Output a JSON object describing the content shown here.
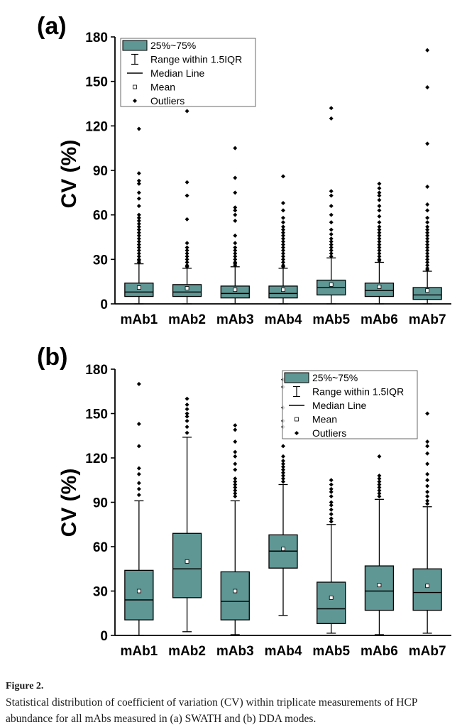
{
  "colors": {
    "box": "#5f9795",
    "stroke": "#000000",
    "axis": "#000000",
    "background": "#ffffff"
  },
  "legend_items": [
    "25%~75%",
    "Range within 1.5IQR",
    "Median Line",
    "Mean",
    "Outliers"
  ],
  "chart_data": [
    {
      "type": "box",
      "panel_label": "(a)",
      "ylabel": "CV (%)",
      "ylim": [
        0,
        180
      ],
      "yticks": [
        0,
        30,
        60,
        90,
        120,
        150,
        180
      ],
      "legend_position": "top-left",
      "categories": [
        "mAb1",
        "mAb2",
        "mAb3",
        "mAb4",
        "mAb5",
        "mAb6",
        "mAb7"
      ],
      "boxes": [
        {
          "name": "mAb1",
          "whisker_low": 0,
          "q1": 5,
          "median": 8,
          "q3": 14,
          "whisker_high": 27,
          "mean": 11,
          "outliers": [
            118,
            88,
            83,
            81,
            75,
            71,
            66,
            60,
            58,
            56,
            54,
            52,
            50,
            48,
            46,
            44,
            42,
            40,
            38,
            36,
            34,
            32,
            30,
            29,
            28
          ]
        },
        {
          "name": "mAb2",
          "whisker_low": 0,
          "q1": 5,
          "median": 8,
          "q3": 13,
          "whisker_high": 24,
          "mean": 10.5,
          "outliers": [
            130,
            82,
            73,
            57,
            41,
            38,
            36,
            34,
            32,
            30,
            28,
            26,
            25
          ]
        },
        {
          "name": "mAb3",
          "whisker_low": 0,
          "q1": 4,
          "median": 7,
          "q3": 12,
          "whisker_high": 25,
          "mean": 9.5,
          "outliers": [
            105,
            85,
            75,
            65,
            63,
            60,
            56,
            46,
            41,
            38,
            36,
            34,
            32,
            30,
            28,
            27,
            26
          ]
        },
        {
          "name": "mAb4",
          "whisker_low": 0,
          "q1": 4,
          "median": 7,
          "q3": 12,
          "whisker_high": 24,
          "mean": 9.5,
          "outliers": [
            86,
            68,
            63,
            58,
            55,
            52,
            50,
            48,
            46,
            44,
            42,
            40,
            38,
            36,
            34,
            32,
            30,
            28,
            26,
            25
          ]
        },
        {
          "name": "mAb5",
          "whisker_low": 0,
          "q1": 6,
          "median": 11,
          "q3": 16,
          "whisker_high": 31,
          "mean": 13,
          "outliers": [
            132,
            125,
            76,
            73,
            66,
            60,
            55,
            50,
            47,
            44,
            42,
            40,
            38,
            36,
            34,
            32
          ]
        },
        {
          "name": "mAb6",
          "whisker_low": 0,
          "q1": 5,
          "median": 9,
          "q3": 14,
          "whisker_high": 28,
          "mean": 11.5,
          "outliers": [
            81,
            78,
            75,
            73,
            70,
            66,
            63,
            59,
            55,
            52,
            50,
            48,
            46,
            44,
            42,
            40,
            38,
            36,
            34,
            32,
            30,
            29
          ]
        },
        {
          "name": "mAb7",
          "whisker_low": 0,
          "q1": 3,
          "median": 6,
          "q3": 11,
          "whisker_high": 22,
          "mean": 9,
          "outliers": [
            171,
            146,
            108,
            79,
            67,
            63,
            58,
            55,
            52,
            50,
            48,
            46,
            44,
            42,
            40,
            38,
            36,
            34,
            32,
            30,
            28,
            26,
            24,
            23
          ]
        }
      ]
    },
    {
      "type": "box",
      "panel_label": "(b)",
      "ylabel": "CV (%)",
      "ylim": [
        0,
        180
      ],
      "yticks": [
        0,
        30,
        60,
        90,
        120,
        150,
        180
      ],
      "legend_position": "top-right",
      "categories": [
        "mAb1",
        "mAb2",
        "mAb3",
        "mAb4",
        "mAb5",
        "mAb6",
        "mAb7"
      ],
      "boxes": [
        {
          "name": "mAb1",
          "whisker_low": 0,
          "q1": 10.5,
          "median": 24,
          "q3": 44,
          "whisker_high": 91,
          "mean": 30,
          "outliers": [
            170,
            143,
            128,
            113,
            109,
            103,
            99,
            95
          ]
        },
        {
          "name": "mAb2",
          "whisker_low": 2.5,
          "q1": 25.5,
          "median": 45,
          "q3": 69,
          "whisker_high": 134,
          "mean": 50,
          "outliers": [
            160,
            156,
            153,
            150,
            148,
            145,
            141,
            137
          ]
        },
        {
          "name": "mAb3",
          "whisker_low": 0.5,
          "q1": 10.5,
          "median": 23,
          "q3": 43,
          "whisker_high": 91,
          "mean": 30,
          "outliers": [
            142,
            139,
            131,
            124,
            121,
            116,
            112,
            106,
            104,
            102,
            100,
            98,
            96,
            94
          ]
        },
        {
          "name": "mAb4",
          "whisker_low": 13.5,
          "q1": 45.5,
          "median": 57,
          "q3": 68,
          "whisker_high": 102,
          "mean": 58.5,
          "outliers": [
            173,
            168,
            154,
            145,
            141,
            128,
            121,
            118,
            116,
            114,
            112,
            110,
            108,
            106,
            104
          ]
        },
        {
          "name": "mAb5",
          "whisker_low": 1.5,
          "q1": 8,
          "median": 18,
          "q3": 36,
          "whisker_high": 75,
          "mean": 25.5,
          "outliers": [
            105,
            102,
            99,
            97,
            94,
            90,
            88,
            85,
            82,
            79,
            77
          ]
        },
        {
          "name": "mAb6",
          "whisker_low": 0.5,
          "q1": 17,
          "median": 30,
          "q3": 47,
          "whisker_high": 92,
          "mean": 34,
          "outliers": [
            121,
            108,
            106,
            104,
            102,
            100,
            98,
            96,
            94
          ]
        },
        {
          "name": "mAb7",
          "whisker_low": 1.5,
          "q1": 17,
          "median": 29,
          "q3": 45,
          "whisker_high": 87,
          "mean": 33.5,
          "outliers": [
            150,
            131,
            128,
            123,
            116,
            109,
            105,
            101,
            97,
            94,
            91,
            89
          ]
        }
      ]
    }
  ],
  "caption": {
    "title": "Figure 2.",
    "text": "Statistical distribution of coefficient of variation (CV) within triplicate measurements of HCP abundance for all mAbs measured in (a) SWATH and (b) DDA modes."
  }
}
